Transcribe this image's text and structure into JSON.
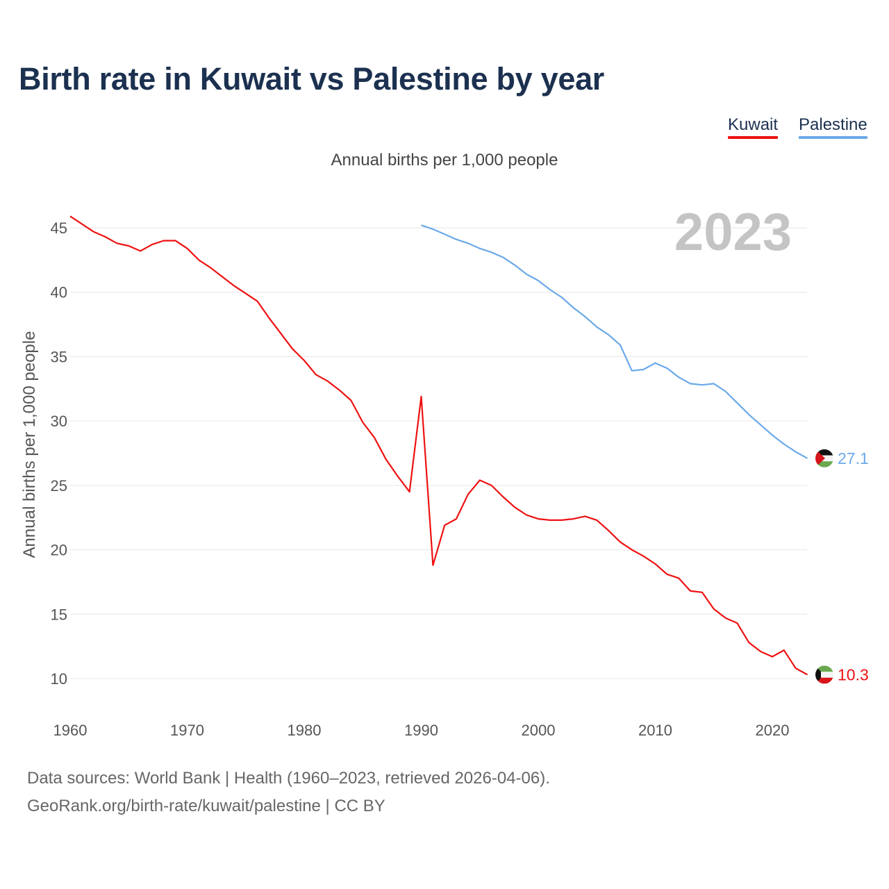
{
  "title": "Birth rate in Kuwait vs Palestine by year",
  "subtitle": "Annual births per 1,000 people",
  "legend": [
    {
      "label": "Kuwait",
      "color": "#ee1111"
    },
    {
      "label": "Palestine",
      "color": "#6aa9e9"
    }
  ],
  "year_watermark": "2023",
  "source_line1": "Data sources: World Bank | Health (1960–2023, retrieved 2026-04-06).",
  "source_line2": "GeoRank.org/birth-rate/kuwait/palestine | CC BY",
  "flags": {
    "kuwait": {
      "green": "#6aa84f",
      "white": "#f4f4f4",
      "red": "#d7141a",
      "black": "#111111"
    },
    "palestine": {
      "black": "#111111",
      "white": "#f4f4f4",
      "green": "#6aa84f",
      "red": "#d7141a"
    }
  },
  "chart_data": {
    "type": "line",
    "title": "Birth rate in Kuwait vs Palestine by year",
    "ylabel": "Annual births per 1,000 people",
    "xlabel": "",
    "xlim": [
      1960,
      2023
    ],
    "ylim": [
      8,
      47
    ],
    "xticks": [
      1960,
      1970,
      1980,
      1990,
      2000,
      2010,
      2020
    ],
    "yticks": [
      10,
      15,
      20,
      25,
      30,
      35,
      40,
      45
    ],
    "grid": true,
    "legend_position": "top-right",
    "series": [
      {
        "name": "Kuwait",
        "color": "#ee1111",
        "x": [
          1960,
          1961,
          1962,
          1963,
          1964,
          1965,
          1966,
          1967,
          1968,
          1969,
          1970,
          1971,
          1972,
          1973,
          1974,
          1975,
          1976,
          1977,
          1978,
          1979,
          1980,
          1981,
          1982,
          1983,
          1984,
          1985,
          1986,
          1987,
          1988,
          1989,
          1990,
          1991,
          1992,
          1993,
          1994,
          1995,
          1996,
          1997,
          1998,
          1999,
          2000,
          2001,
          2002,
          2003,
          2004,
          2005,
          2006,
          2007,
          2008,
          2009,
          2010,
          2011,
          2012,
          2013,
          2014,
          2015,
          2016,
          2017,
          2018,
          2019,
          2020,
          2021,
          2022,
          2023
        ],
        "values": [
          45.9,
          45.3,
          44.7,
          44.3,
          43.8,
          43.6,
          43.2,
          43.7,
          44.0,
          44.0,
          43.4,
          42.5,
          41.9,
          41.2,
          40.5,
          39.9,
          39.3,
          38.0,
          36.8,
          35.6,
          34.7,
          33.6,
          33.1,
          32.4,
          31.6,
          29.9,
          28.7,
          27.0,
          25.7,
          24.5,
          31.9,
          18.8,
          21.9,
          22.4,
          24.3,
          25.4,
          25.0,
          24.1,
          23.3,
          22.7,
          22.4,
          22.3,
          22.3,
          22.4,
          22.6,
          22.3,
          21.5,
          20.6,
          20.0,
          19.5,
          18.9,
          18.1,
          17.8,
          16.8,
          16.7,
          15.4,
          14.7,
          14.3,
          12.8,
          12.1,
          11.7,
          12.2,
          10.8,
          10.3
        ],
        "end_label": "10.3"
      },
      {
        "name": "Palestine",
        "color": "#6aa9e9",
        "x": [
          1990,
          1991,
          1992,
          1993,
          1994,
          1995,
          1996,
          1997,
          1998,
          1999,
          2000,
          2001,
          2002,
          2003,
          2004,
          2005,
          2006,
          2007,
          2008,
          2009,
          2010,
          2011,
          2012,
          2013,
          2014,
          2015,
          2016,
          2017,
          2018,
          2019,
          2020,
          2021,
          2022,
          2023
        ],
        "values": [
          45.2,
          44.9,
          44.5,
          44.1,
          43.8,
          43.4,
          43.1,
          42.7,
          42.1,
          41.4,
          40.9,
          40.2,
          39.6,
          38.8,
          38.1,
          37.3,
          36.7,
          35.9,
          33.9,
          34.0,
          34.5,
          34.1,
          33.4,
          32.9,
          32.8,
          32.9,
          32.3,
          31.4,
          30.5,
          29.7,
          28.9,
          28.2,
          27.6,
          27.1
        ],
        "end_label": "27.1"
      }
    ]
  }
}
